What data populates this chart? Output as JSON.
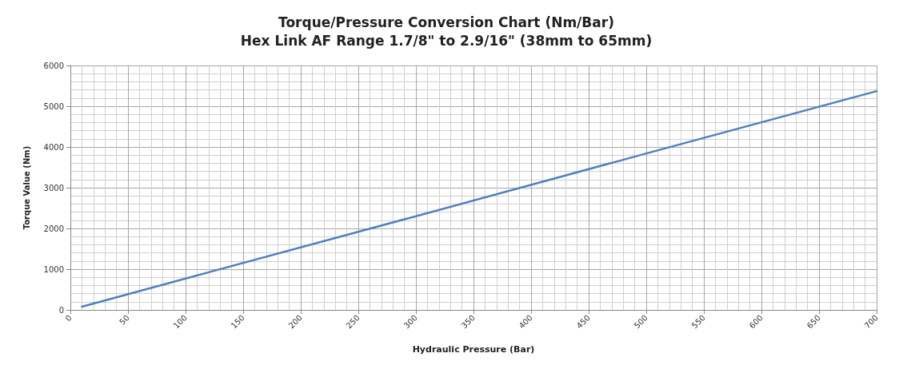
{
  "chart_data": {
    "type": "line",
    "title": "Torque/Pressure Conversion Chart (Nm/Bar)",
    "subtitle": "Hex Link AF Range 1.7/8\" to 2.9/16\" (38mm to 65mm)",
    "xlabel": "Hydraulic Pressure (Bar)",
    "ylabel": "Torque Value (Nm)",
    "x": [
      10,
      100,
      300,
      500,
      700
    ],
    "series": [
      {
        "color": "#4f81bd",
        "values": [
          80,
          770,
          2300,
          3840,
          5370
        ]
      }
    ],
    "xlim": [
      0,
      700
    ],
    "xticks": [
      0,
      50,
      100,
      150,
      200,
      250,
      300,
      350,
      400,
      450,
      500,
      550,
      600,
      650,
      700
    ],
    "ylim": [
      0,
      6000
    ],
    "yticks": [
      0,
      1000,
      2000,
      3000,
      4000,
      5000,
      6000
    ],
    "grid": true,
    "marker": "none",
    "line_style": "solid"
  }
}
